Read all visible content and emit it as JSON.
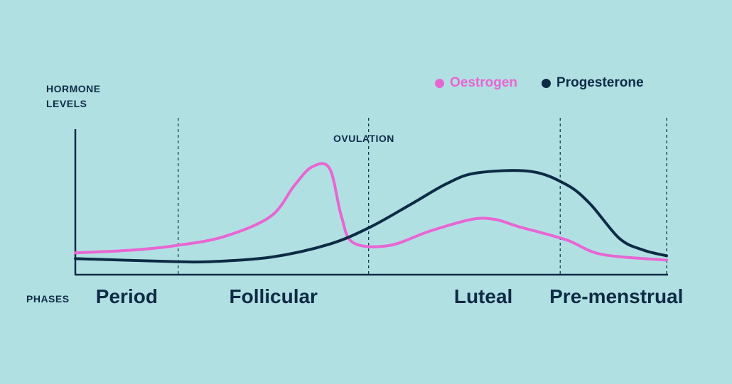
{
  "colors": {
    "background": "#b1e0e3",
    "oestrogen": "#e866d2",
    "progesterone": "#0d2b45",
    "text": "#0d2b45"
  },
  "labels": {
    "ylabel_line1": "HORMONE",
    "ylabel_line2": "LEVELS",
    "ovulation": "OVULATION",
    "phases": "PHASES"
  },
  "chart_data": {
    "type": "line",
    "title": "",
    "ylabel": "HORMONE LEVELS",
    "xlabel": "PHASES",
    "grid": false,
    "legend_position": "top-right",
    "x_range": [
      0,
      100
    ],
    "y_range": [
      0,
      100
    ],
    "series": [
      {
        "name": "Oestrogen",
        "color_key": "oestrogen",
        "points": [
          [
            0,
            15
          ],
          [
            10,
            17
          ],
          [
            17,
            20
          ],
          [
            25,
            26
          ],
          [
            33,
            40
          ],
          [
            37,
            61
          ],
          [
            40,
            74
          ],
          [
            43,
            73
          ],
          [
            45,
            40
          ],
          [
            47,
            22
          ],
          [
            53,
            20
          ],
          [
            60,
            30
          ],
          [
            67,
            38
          ],
          [
            71,
            38
          ],
          [
            75,
            33
          ],
          [
            83,
            24
          ],
          [
            89,
            14
          ],
          [
            100,
            10
          ]
        ]
      },
      {
        "name": "Progesterone",
        "color_key": "progesterone",
        "points": [
          [
            0,
            11
          ],
          [
            17,
            9
          ],
          [
            23,
            9
          ],
          [
            33,
            12
          ],
          [
            43,
            21
          ],
          [
            50,
            33
          ],
          [
            57,
            49
          ],
          [
            63,
            63
          ],
          [
            68,
            70
          ],
          [
            77,
            71
          ],
          [
            83,
            62
          ],
          [
            87,
            49
          ],
          [
            92,
            25
          ],
          [
            96,
            17
          ],
          [
            100,
            13
          ]
        ]
      }
    ],
    "markers": [
      {
        "x": 17.4,
        "label": ""
      },
      {
        "x": 49.6,
        "label": "OVULATION"
      },
      {
        "x": 82,
        "label": ""
      },
      {
        "x": 100,
        "label": ""
      }
    ],
    "phases": [
      {
        "label": "Period",
        "x": 8.7
      },
      {
        "label": "Follicular",
        "x": 33.5
      },
      {
        "label": "Luteal",
        "x": 69
      },
      {
        "label": "Pre-menstrual",
        "x": 91.5
      }
    ]
  }
}
